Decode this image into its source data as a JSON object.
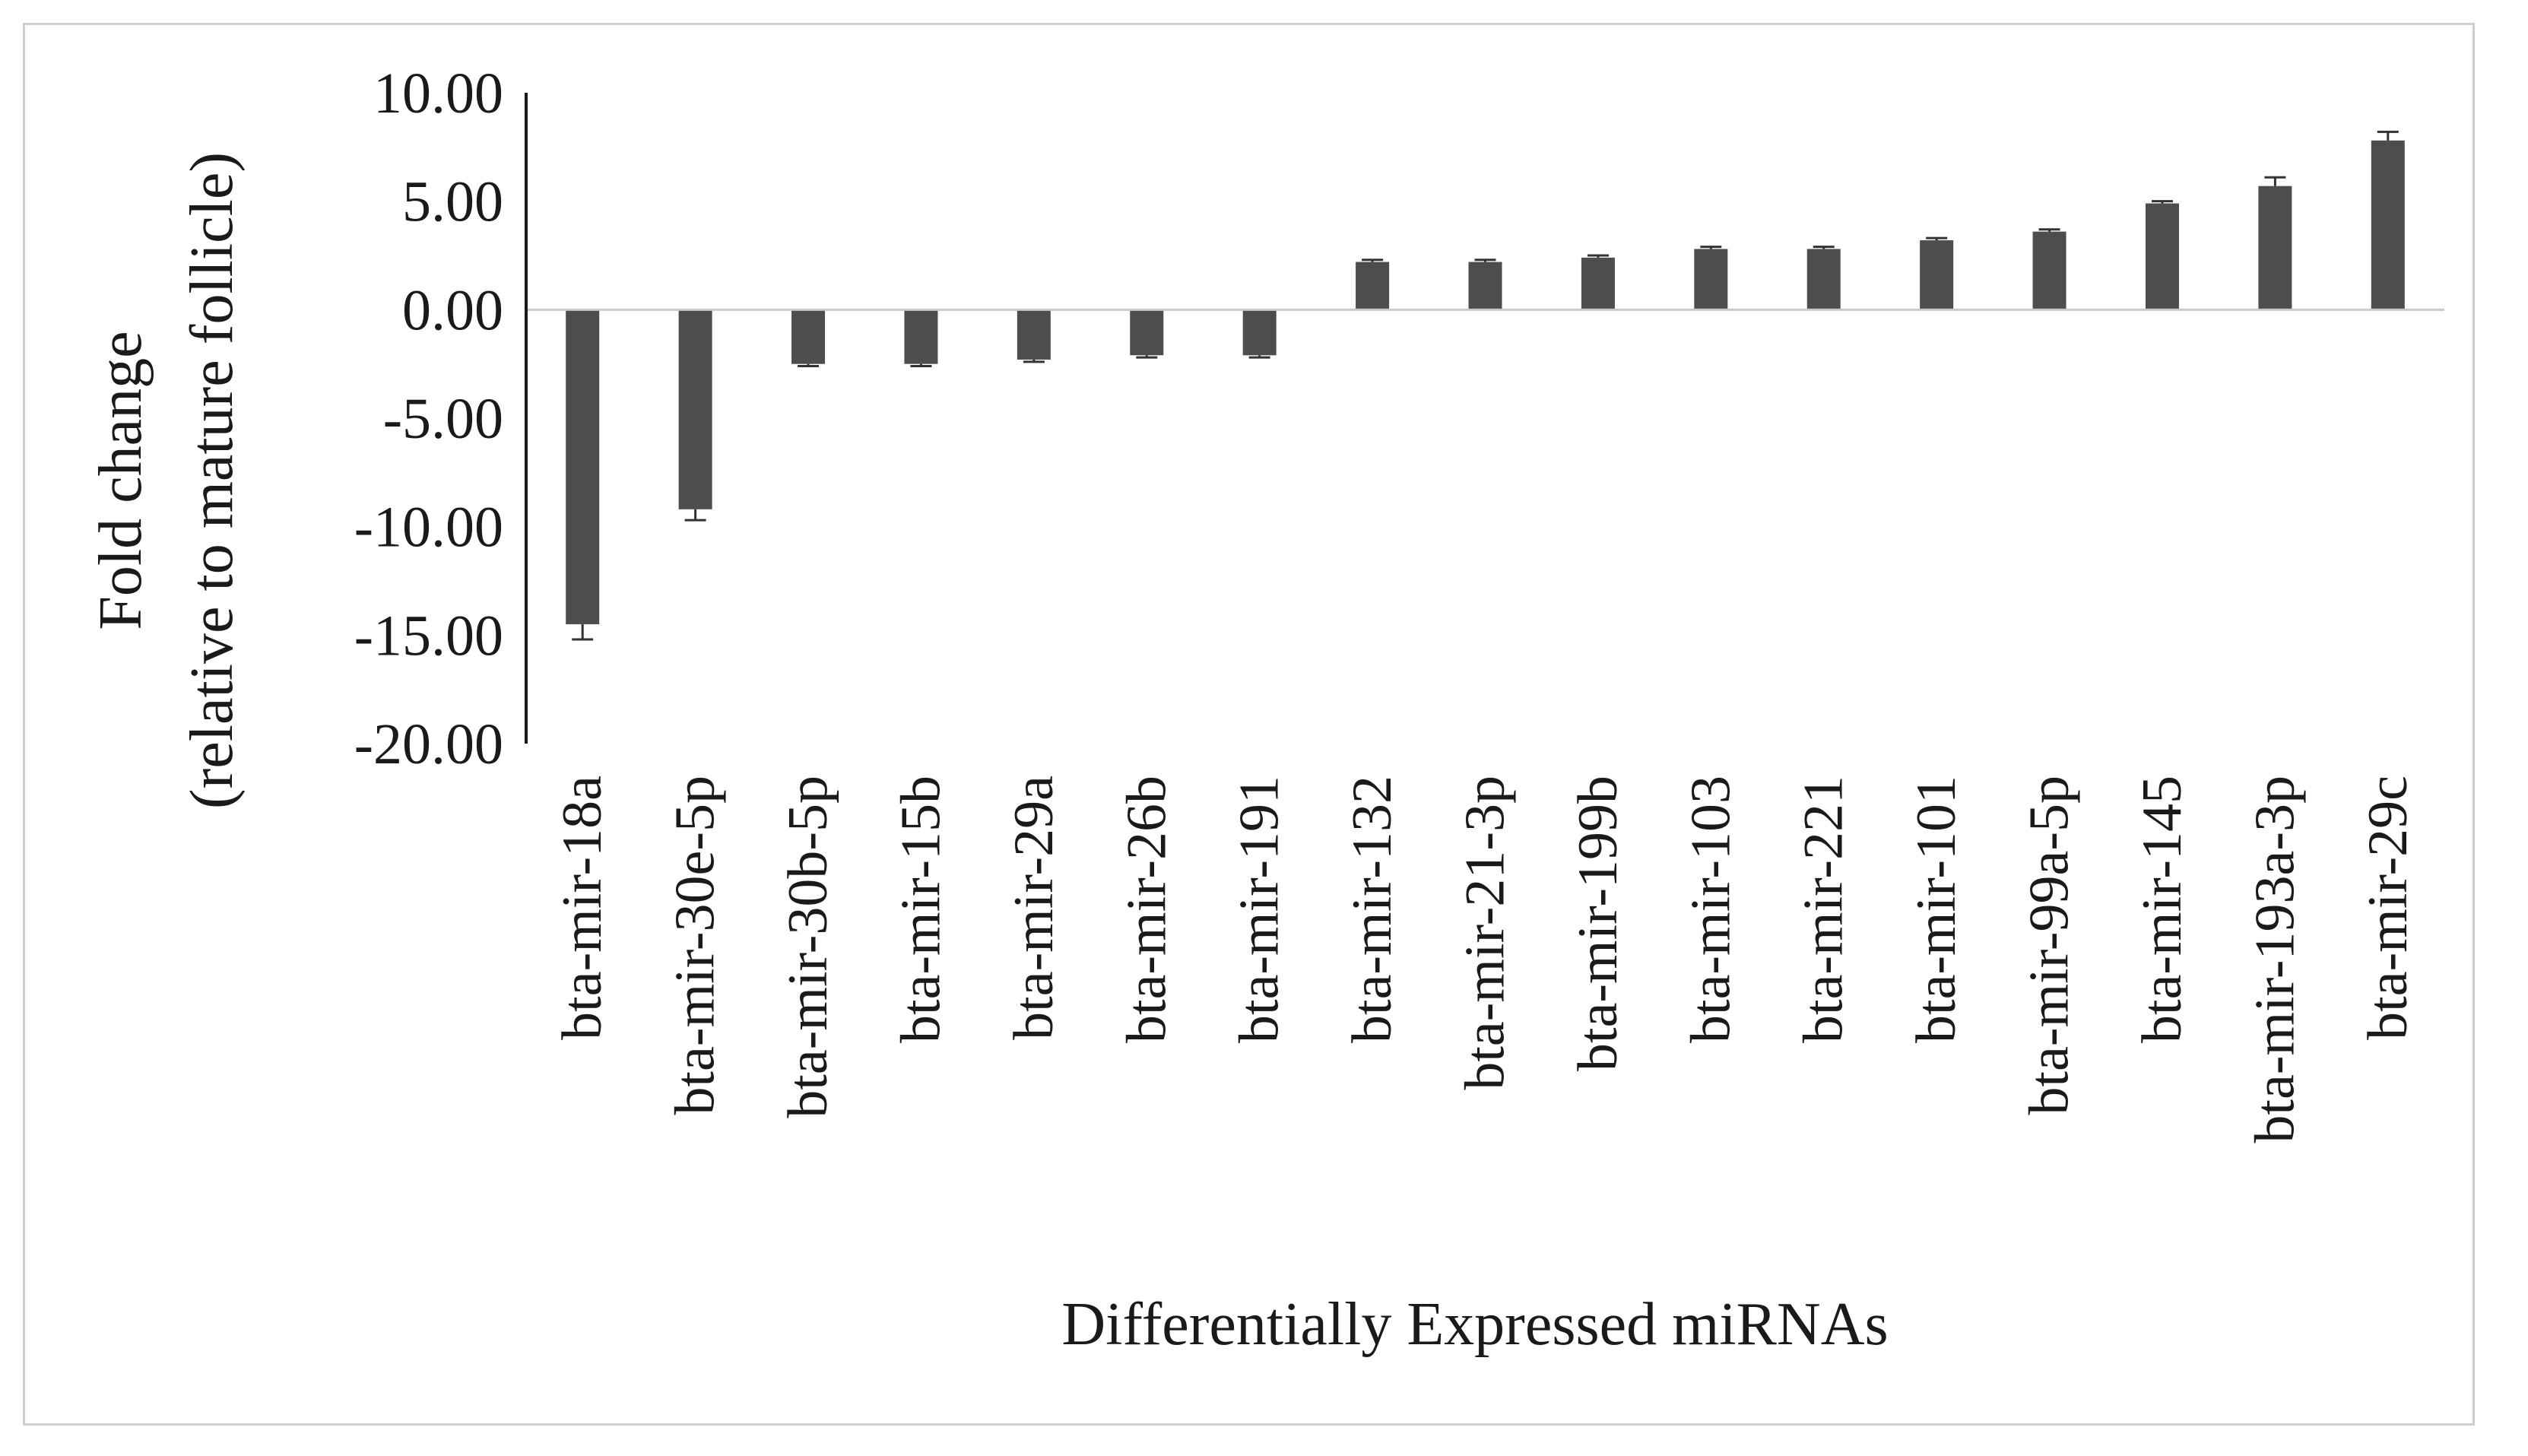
{
  "chart_data": {
    "type": "bar",
    "title": "",
    "xlabel": "Differentially  Expressed miRNAs",
    "ylabel_line1": "Fold change",
    "ylabel_line2": "(relative  to mature  follicle)",
    "ylim": [
      -20,
      10
    ],
    "yticks": [
      10,
      5,
      0,
      -5,
      -10,
      -15,
      -20
    ],
    "ytick_labels": [
      "10.00",
      "5.00",
      "0.00",
      "-5.00",
      "-10.00",
      "-15.00",
      "-20.00"
    ],
    "categories": [
      "bta-mir-18a",
      "bta-mir-30e-5p",
      "bta-mir-30b-5p",
      "bta-mir-15b",
      "bta-mir-29a",
      "bta-mir-26b",
      "bta-mir-191",
      "bta-mir-132",
      "bta-mir-21-3p",
      "bta-mir-199b",
      "bta-mir-103",
      "bta-mir-221",
      "bta-mir-101",
      "bta-mir-99a-5p",
      "bta-mir-145",
      "bta-mir-193a-3p",
      "bta-mir-29c"
    ],
    "values": [
      -14.5,
      -9.2,
      -2.5,
      -2.5,
      -2.3,
      -2.1,
      -2.1,
      2.2,
      2.2,
      2.4,
      2.8,
      2.8,
      3.2,
      3.6,
      4.9,
      5.7,
      7.8
    ],
    "errors": [
      0.7,
      0.5,
      0.1,
      0.1,
      0.1,
      0.1,
      0.1,
      0.1,
      0.1,
      0.1,
      0.1,
      0.1,
      0.1,
      0.1,
      0.1,
      0.4,
      0.4
    ],
    "grid": false,
    "legend": "none"
  },
  "colors": {
    "bar": "#4d4d4d",
    "axis": "#1a1a1a",
    "zero_line": "#c8c8c8",
    "frame": "#cfcfcf"
  }
}
